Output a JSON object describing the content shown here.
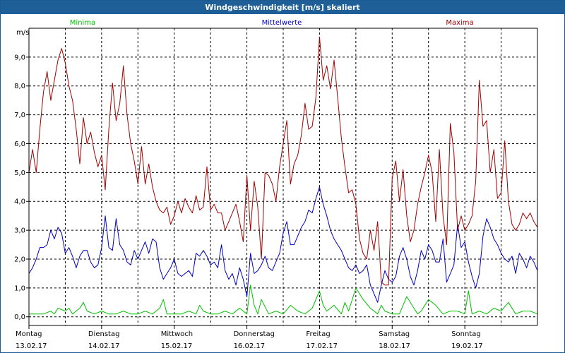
{
  "window": {
    "title": "Windgeschwindigkeit [m/s] skaliert"
  },
  "colors": {
    "minima": "#00c000",
    "mittelwerte": "#0000c0",
    "maxima": "#a00000",
    "grid": "#000000",
    "axis": "#000000",
    "titlebar": "#1f5f98"
  },
  "chart_data": {
    "type": "line",
    "title": "Windgeschwindigkeit [m/s] skaliert",
    "ylabel": "m/s",
    "xlabel": "",
    "ylim": [
      -0.3,
      10.0
    ],
    "y_ticks": [
      "0,0",
      "1,0",
      "2,0",
      "3,0",
      "4,0",
      "5,0",
      "6,0",
      "7,0",
      "8,0",
      "9,0"
    ],
    "days": [
      {
        "name": "Montag",
        "date": "13.02.17"
      },
      {
        "name": "Dienstag",
        "date": "14.02.17"
      },
      {
        "name": "Mittwoch",
        "date": "15.02.17"
      },
      {
        "name": "Donnerstag",
        "date": "16.02.17"
      },
      {
        "name": "Freitag",
        "date": "17.02.17"
      },
      {
        "name": "Samstag",
        "date": "18.02.17"
      },
      {
        "name": "Sonntag",
        "date": "19.02.17"
      }
    ],
    "x_days": [
      0,
      7
    ],
    "grid": true,
    "legend_position": "top",
    "series": [
      {
        "name": "Minima",
        "key": "minima",
        "color": "#00c000",
        "x": [
          0,
          0.1,
          0.2,
          0.3,
          0.35,
          0.4,
          0.5,
          0.55,
          0.6,
          0.7,
          0.75,
          0.8,
          0.9,
          1.0,
          1.1,
          1.2,
          1.3,
          1.4,
          1.5,
          1.6,
          1.7,
          1.8,
          1.85,
          1.9,
          2.0,
          2.1,
          2.2,
          2.3,
          2.35,
          2.4,
          2.5,
          2.6,
          2.7,
          2.8,
          2.9,
          3.0,
          3.05,
          3.1,
          3.15,
          3.2,
          3.3,
          3.4,
          3.5,
          3.6,
          3.7,
          3.8,
          3.9,
          4.0,
          4.05,
          4.1,
          4.2,
          4.3,
          4.35,
          4.4,
          4.5,
          4.6,
          4.7,
          4.8,
          4.85,
          4.9,
          5.0,
          5.1,
          5.2,
          5.3,
          5.35,
          5.4,
          5.5,
          5.6,
          5.7,
          5.8,
          5.9,
          6.0,
          6.05,
          6.1,
          6.2,
          6.3,
          6.4,
          6.5,
          6.6,
          6.7,
          6.8,
          6.9,
          7.0
        ],
        "y": [
          0.1,
          0.1,
          0.1,
          0.2,
          0.1,
          0.3,
          0.2,
          0.3,
          0.1,
          0.3,
          0.5,
          0.2,
          0.1,
          0.2,
          0.1,
          0.1,
          0.2,
          0.1,
          0.1,
          0.2,
          0.1,
          0.3,
          0.6,
          0.1,
          0.1,
          0.1,
          0.2,
          0.1,
          0.4,
          0.2,
          0.1,
          0.1,
          0.2,
          0.1,
          0.3,
          0.1,
          1.1,
          0.4,
          0.1,
          0.6,
          0.1,
          0.2,
          0.1,
          0.4,
          0.2,
          0.1,
          0.3,
          0.9,
          0.4,
          0.2,
          0.4,
          0.1,
          0.5,
          0.2,
          1.0,
          0.6,
          0.3,
          0.1,
          0.4,
          0.2,
          0.1,
          0.1,
          0.7,
          0.3,
          0.1,
          0.2,
          0.6,
          0.4,
          0.1,
          0.2,
          0.2,
          0.1,
          0.9,
          0.1,
          0.2,
          0.1,
          0.3,
          0.2,
          0.5,
          0.1,
          0.2,
          0.2,
          0.1
        ]
      },
      {
        "name": "Mittelwerte",
        "key": "mittelwerte",
        "color": "#0000c0",
        "x": [
          0,
          0.05,
          0.1,
          0.15,
          0.2,
          0.25,
          0.3,
          0.35,
          0.4,
          0.45,
          0.5,
          0.55,
          0.6,
          0.65,
          0.7,
          0.75,
          0.8,
          0.85,
          0.9,
          0.95,
          1.0,
          1.05,
          1.1,
          1.15,
          1.2,
          1.25,
          1.3,
          1.35,
          1.4,
          1.45,
          1.5,
          1.55,
          1.6,
          1.65,
          1.7,
          1.75,
          1.8,
          1.85,
          1.9,
          1.95,
          2.0,
          2.05,
          2.1,
          2.15,
          2.2,
          2.25,
          2.3,
          2.35,
          2.4,
          2.45,
          2.5,
          2.55,
          2.6,
          2.65,
          2.7,
          2.75,
          2.8,
          2.85,
          2.9,
          2.95,
          3.0,
          3.05,
          3.1,
          3.15,
          3.2,
          3.25,
          3.3,
          3.35,
          3.4,
          3.45,
          3.5,
          3.55,
          3.6,
          3.65,
          3.7,
          3.75,
          3.8,
          3.85,
          3.9,
          3.95,
          4.0,
          4.05,
          4.1,
          4.15,
          4.2,
          4.25,
          4.3,
          4.35,
          4.4,
          4.45,
          4.5,
          4.55,
          4.6,
          4.65,
          4.7,
          4.75,
          4.8,
          4.85,
          4.9,
          4.95,
          5.0,
          5.05,
          5.1,
          5.15,
          5.2,
          5.25,
          5.3,
          5.35,
          5.4,
          5.45,
          5.5,
          5.55,
          5.6,
          5.65,
          5.7,
          5.75,
          5.8,
          5.85,
          5.9,
          5.95,
          6.0,
          6.05,
          6.1,
          6.15,
          6.2,
          6.25,
          6.3,
          6.35,
          6.4,
          6.45,
          6.5,
          6.55,
          6.6,
          6.65,
          6.7,
          6.75,
          6.8,
          6.85,
          6.9,
          6.95,
          7.0
        ],
        "y": [
          1.5,
          1.7,
          2.0,
          2.4,
          2.4,
          2.5,
          3.0,
          2.7,
          3.1,
          2.9,
          2.2,
          2.4,
          2.1,
          1.7,
          2.1,
          2.3,
          2.3,
          1.9,
          1.7,
          1.8,
          2.4,
          3.5,
          2.4,
          2.3,
          3.4,
          2.5,
          2.3,
          1.9,
          1.8,
          2.3,
          2.0,
          2.3,
          2.6,
          2.2,
          2.7,
          2.6,
          1.7,
          1.3,
          1.5,
          1.7,
          2.0,
          1.5,
          1.4,
          1.5,
          1.6,
          1.4,
          2.2,
          2.1,
          2.3,
          2.1,
          1.8,
          1.9,
          1.7,
          2.5,
          1.6,
          1.3,
          1.5,
          1.1,
          1.7,
          1.3,
          0.7,
          2.2,
          1.5,
          1.6,
          1.8,
          2.1,
          1.7,
          1.6,
          1.9,
          2.2,
          2.9,
          3.3,
          2.5,
          2.5,
          2.8,
          3.1,
          3.3,
          3.7,
          3.6,
          4.1,
          4.5,
          3.9,
          3.5,
          3.0,
          2.7,
          2.5,
          2.3,
          2.0,
          1.7,
          1.6,
          1.8,
          1.5,
          1.6,
          1.8,
          1.1,
          0.8,
          0.5,
          1.1,
          1.6,
          1.3,
          1.2,
          1.4,
          2.1,
          2.4,
          2.0,
          1.4,
          1.1,
          1.6,
          2.3,
          2.0,
          2.5,
          2.3,
          1.9,
          1.9,
          2.7,
          1.2,
          1.5,
          1.8,
          3.2,
          2.4,
          2.6,
          1.9,
          1.4,
          1.0,
          1.5,
          2.8,
          3.4,
          3.1,
          2.7,
          2.5,
          2.2,
          2.0,
          1.9,
          2.1,
          1.5,
          2.2,
          2.0,
          1.7,
          2.1,
          1.9,
          1.6
        ]
      },
      {
        "name": "Maxima",
        "key": "maxima",
        "color": "#a00000",
        "x": [
          0,
          0.05,
          0.1,
          0.15,
          0.2,
          0.25,
          0.3,
          0.35,
          0.4,
          0.45,
          0.5,
          0.55,
          0.6,
          0.65,
          0.7,
          0.75,
          0.8,
          0.85,
          0.9,
          0.95,
          1.0,
          1.05,
          1.1,
          1.15,
          1.2,
          1.25,
          1.3,
          1.35,
          1.4,
          1.45,
          1.5,
          1.55,
          1.6,
          1.65,
          1.7,
          1.75,
          1.8,
          1.85,
          1.9,
          1.95,
          2.0,
          2.05,
          2.1,
          2.15,
          2.2,
          2.25,
          2.3,
          2.35,
          2.4,
          2.45,
          2.5,
          2.55,
          2.6,
          2.65,
          2.7,
          2.75,
          2.8,
          2.85,
          2.9,
          2.95,
          3.0,
          3.05,
          3.1,
          3.15,
          3.2,
          3.25,
          3.3,
          3.35,
          3.4,
          3.45,
          3.5,
          3.55,
          3.6,
          3.65,
          3.7,
          3.75,
          3.8,
          3.85,
          3.9,
          3.95,
          4.0,
          4.05,
          4.1,
          4.15,
          4.2,
          4.25,
          4.3,
          4.35,
          4.4,
          4.45,
          4.5,
          4.55,
          4.6,
          4.65,
          4.7,
          4.75,
          4.8,
          4.85,
          4.9,
          4.95,
          5.0,
          5.05,
          5.1,
          5.15,
          5.2,
          5.25,
          5.3,
          5.35,
          5.4,
          5.45,
          5.5,
          5.55,
          5.6,
          5.65,
          5.7,
          5.75,
          5.8,
          5.85,
          5.9,
          5.95,
          6.0,
          6.05,
          6.1,
          6.15,
          6.2,
          6.25,
          6.3,
          6.35,
          6.4,
          6.45,
          6.5,
          6.55,
          6.6,
          6.65,
          6.7,
          6.75,
          6.8,
          6.85,
          6.9,
          6.95,
          7.0
        ],
        "y": [
          5.0,
          5.8,
          5.0,
          6.5,
          7.8,
          8.5,
          7.5,
          8.2,
          8.9,
          9.3,
          8.8,
          8.0,
          7.5,
          6.5,
          5.3,
          6.9,
          6.0,
          6.4,
          5.7,
          5.2,
          5.6,
          4.4,
          6.5,
          8.1,
          6.8,
          7.4,
          8.7,
          7.0,
          6.0,
          5.4,
          4.6,
          5.9,
          4.6,
          5.3,
          4.5,
          4.0,
          3.7,
          3.6,
          3.8,
          3.2,
          3.5,
          4.0,
          3.6,
          4.1,
          3.8,
          3.6,
          4.2,
          3.7,
          3.8,
          5.2,
          3.7,
          3.9,
          3.6,
          3.6,
          3.0,
          3.3,
          3.6,
          3.9,
          3.3,
          2.6,
          4.9,
          3.0,
          4.7,
          3.8,
          2.0,
          5.0,
          4.9,
          4.6,
          4.0,
          5.2,
          6.0,
          6.8,
          4.6,
          5.3,
          5.6,
          6.3,
          7.4,
          6.5,
          6.6,
          7.6,
          9.7,
          8.2,
          8.7,
          7.9,
          8.9,
          7.6,
          6.2,
          5.2,
          4.3,
          4.4,
          3.9,
          2.7,
          2.2,
          2.0,
          3.0,
          2.3,
          3.3,
          1.2,
          1.1,
          1.1,
          4.8,
          5.4,
          4.0,
          5.1,
          3.5,
          2.6,
          3.0,
          3.9,
          4.5,
          5.0,
          5.6,
          5.0,
          3.3,
          5.8,
          3.5,
          2.5,
          6.7,
          5.7,
          3.0,
          3.5,
          3.0,
          3.2,
          3.5,
          4.7,
          8.2,
          6.6,
          6.8,
          5.0,
          5.8,
          4.1,
          4.3,
          6.1,
          4.0,
          3.2,
          3.0,
          3.2,
          3.6,
          3.4,
          3.6,
          3.3,
          3.1
        ]
      }
    ]
  }
}
